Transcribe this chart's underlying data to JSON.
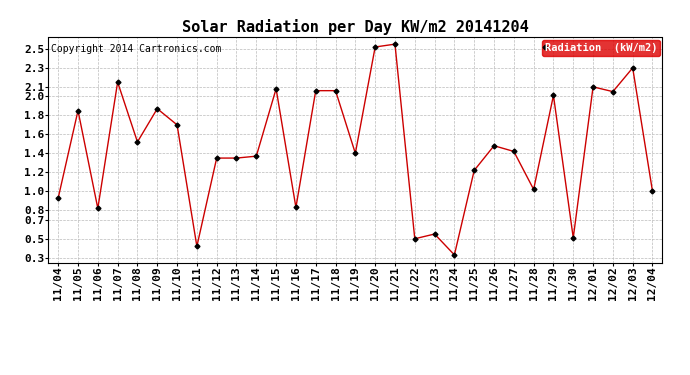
{
  "title": "Solar Radiation per Day KW/m2 20141204",
  "copyright": "Copyright 2014 Cartronics.com",
  "legend_label": "Radiation  (kW/m2)",
  "ylim": [
    0.25,
    2.62
  ],
  "yticks": [
    0.3,
    0.5,
    0.7,
    0.8,
    1.0,
    1.2,
    1.4,
    1.6,
    1.8,
    2.0,
    2.1,
    2.3,
    2.5
  ],
  "ytick_labels": [
    "0.3",
    "0.5",
    "0.7",
    "0.8",
    "1.0",
    "1.2",
    "1.4",
    "1.6",
    "1.8",
    "2.0",
    "2.1",
    "2.3",
    "2.5"
  ],
  "dates": [
    "11/04",
    "11/05",
    "11/06",
    "11/07",
    "11/08",
    "11/09",
    "11/10",
    "11/11",
    "11/12",
    "11/13",
    "11/14",
    "11/15",
    "11/16",
    "11/17",
    "11/18",
    "11/19",
    "11/20",
    "11/21",
    "11/22",
    "11/23",
    "11/24",
    "11/25",
    "11/26",
    "11/27",
    "11/28",
    "11/29",
    "11/30",
    "12/01",
    "12/02",
    "12/03",
    "12/04"
  ],
  "values": [
    0.93,
    1.85,
    0.82,
    2.15,
    1.52,
    1.87,
    1.7,
    0.42,
    1.35,
    1.35,
    1.37,
    2.08,
    0.83,
    2.06,
    2.06,
    1.4,
    2.52,
    2.55,
    0.5,
    0.55,
    0.33,
    1.22,
    1.48,
    1.42,
    1.02,
    2.01,
    0.51,
    2.1,
    2.05,
    2.3,
    1.0
  ],
  "line_color": "#cc0000",
  "marker_color": "#000000",
  "bg_color": "#ffffff",
  "grid_color": "#bbbbbb",
  "title_fontsize": 11,
  "tick_fontsize": 8,
  "copyright_fontsize": 7,
  "legend_bg": "#dd0000",
  "legend_text_color": "#ffffff",
  "legend_fontsize": 7.5
}
